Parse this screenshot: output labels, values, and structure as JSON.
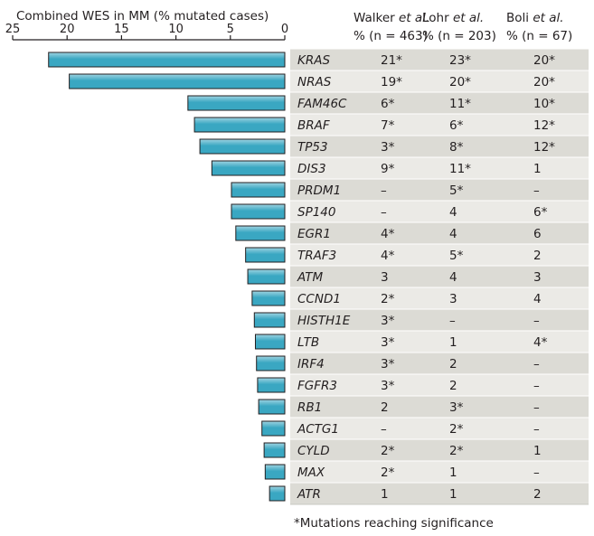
{
  "chart_data": {
    "type": "bar",
    "orientation": "horizontal",
    "title": "Combined WES in MM (% mutated cases)",
    "xlim": [
      25,
      0
    ],
    "x_ticks": [
      "25",
      "20",
      "15",
      "10",
      "5",
      "0"
    ],
    "categories": [
      "KRAS",
      "NRAS",
      "FAM46C",
      "BRAF",
      "TP53",
      "DIS3",
      "PRDM1",
      "SP140",
      "EGR1",
      "TRAF3",
      "ATM",
      "CCND1",
      "HISTH1E",
      "LTB",
      "IRF4",
      "FGFR3",
      "RB1",
      "ACTG1",
      "CYLD",
      "MAX",
      "ATR"
    ],
    "values": [
      21.7,
      19.8,
      8.9,
      8.3,
      7.8,
      6.7,
      4.9,
      4.9,
      4.5,
      3.6,
      3.4,
      3.0,
      2.8,
      2.7,
      2.6,
      2.5,
      2.4,
      2.1,
      1.9,
      1.8,
      1.4
    ],
    "bar_color": "#3aa7c2",
    "bar_color_light": "#9fd4e2",
    "table": {
      "columns": [
        {
          "author": "Walker",
          "suffix": " et al.",
          "n_line": "% (n = 463)"
        },
        {
          "author": "Lohr",
          "suffix": " et al.",
          "n_line": "% (n = 203)"
        },
        {
          "author": "Boli",
          "suffix": " et al.",
          "n_line": "% (n = 67)"
        }
      ],
      "rows": [
        [
          "21*",
          "23*",
          "20*"
        ],
        [
          "19*",
          "20*",
          "20*"
        ],
        [
          "6*",
          "11*",
          "10*"
        ],
        [
          "7*",
          "6*",
          "12*"
        ],
        [
          "3*",
          "8*",
          "12*"
        ],
        [
          "9*",
          "11*",
          "1"
        ],
        [
          "–",
          "5*",
          "–"
        ],
        [
          "–",
          "4",
          "6*"
        ],
        [
          "4*",
          "4",
          "6"
        ],
        [
          "4*",
          "5*",
          "2"
        ],
        [
          "3",
          "4",
          "3"
        ],
        [
          "2*",
          "3",
          "4"
        ],
        [
          "3*",
          "–",
          "–"
        ],
        [
          "3*",
          "1",
          "4*"
        ],
        [
          "3*",
          "2",
          "–"
        ],
        [
          "3*",
          "2",
          "–"
        ],
        [
          "2",
          "3*",
          "–"
        ],
        [
          "–",
          "2*",
          "–"
        ],
        [
          "2*",
          "2*",
          "1"
        ],
        [
          "2*",
          "1",
          "–"
        ],
        [
          "1",
          "1",
          "2"
        ]
      ],
      "row_bg_dark": "#dcdbd5",
      "row_bg_light": "#ebeae6"
    },
    "footnote": "*Mutations reaching significance"
  }
}
